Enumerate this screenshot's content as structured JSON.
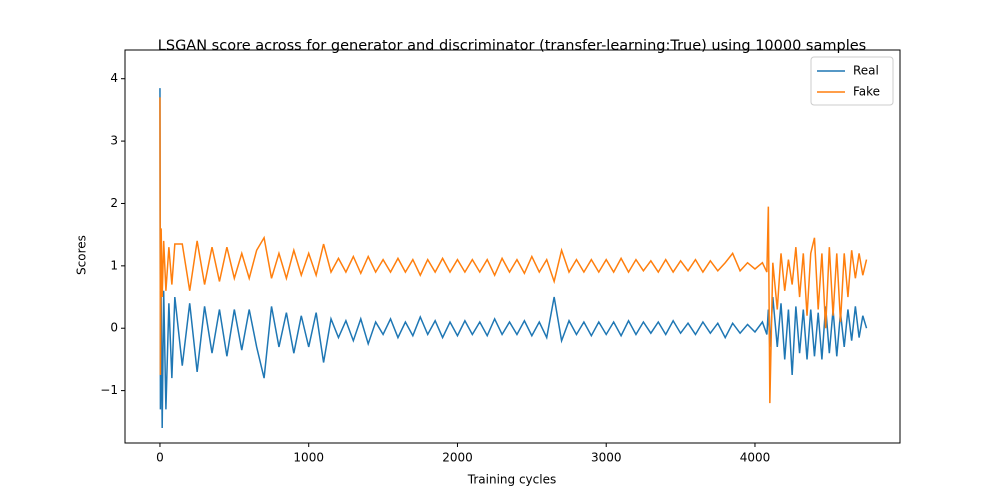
{
  "chart_data": {
    "type": "line",
    "title": "LSGAN score across for generator and discriminator (transfer-learning:True) using 10000 samples",
    "xlabel": "Training cycles",
    "ylabel": "Scores",
    "x": [
      0,
      3,
      8,
      15,
      25,
      40,
      60,
      80,
      100,
      150,
      200,
      250,
      300,
      350,
      400,
      450,
      500,
      550,
      600,
      650,
      700,
      750,
      800,
      850,
      900,
      950,
      1000,
      1050,
      1100,
      1150,
      1200,
      1250,
      1300,
      1350,
      1400,
      1450,
      1500,
      1550,
      1600,
      1650,
      1700,
      1750,
      1800,
      1850,
      1900,
      1950,
      2000,
      2050,
      2100,
      2150,
      2200,
      2250,
      2300,
      2350,
      2400,
      2450,
      2500,
      2550,
      2600,
      2650,
      2700,
      2750,
      2800,
      2850,
      2900,
      2950,
      3000,
      3050,
      3100,
      3150,
      3200,
      3250,
      3300,
      3350,
      3400,
      3450,
      3500,
      3550,
      3600,
      3650,
      3700,
      3750,
      3800,
      3850,
      3900,
      3950,
      4000,
      4050,
      4080,
      4090,
      4100,
      4120,
      4150,
      4175,
      4200,
      4225,
      4250,
      4275,
      4300,
      4325,
      4350,
      4375,
      4400,
      4425,
      4450,
      4475,
      4500,
      4525,
      4550,
      4575,
      4600,
      4625,
      4650,
      4675,
      4700,
      4725,
      4750
    ],
    "series": [
      {
        "name": "Real",
        "color": "#1f77b4",
        "values": [
          3.85,
          -1.3,
          0.5,
          -1.6,
          0.6,
          -1.3,
          0.4,
          -0.8,
          0.5,
          -0.6,
          0.4,
          -0.7,
          0.35,
          -0.4,
          0.3,
          -0.45,
          0.3,
          -0.35,
          0.3,
          -0.3,
          -0.8,
          0.35,
          -0.3,
          0.25,
          -0.4,
          0.2,
          -0.3,
          0.25,
          -0.55,
          0.15,
          -0.15,
          0.12,
          -0.2,
          0.15,
          -0.25,
          0.1,
          -0.1,
          0.15,
          -0.15,
          0.1,
          -0.12,
          0.18,
          -0.1,
          0.12,
          -0.15,
          0.1,
          -0.12,
          0.12,
          -0.1,
          0.1,
          -0.12,
          0.15,
          -0.1,
          0.1,
          -0.1,
          0.12,
          -0.12,
          0.1,
          -0.15,
          0.5,
          -0.2,
          0.12,
          -0.1,
          0.1,
          -0.12,
          0.1,
          -0.1,
          0.1,
          -0.12,
          0.12,
          -0.1,
          0.1,
          -0.08,
          0.1,
          -0.1,
          0.12,
          -0.08,
          0.08,
          -0.1,
          0.1,
          -0.08,
          0.08,
          -0.15,
          0.08,
          -0.08,
          0.06,
          -0.06,
          0.1,
          -0.1,
          0.3,
          -0.3,
          0.5,
          -0.3,
          0.4,
          -0.5,
          0.3,
          -0.75,
          0.35,
          -0.4,
          0.3,
          -0.5,
          0.3,
          -0.45,
          0.25,
          -0.5,
          0.35,
          -0.4,
          0.3,
          -0.45,
          0.25,
          -0.3,
          0.3,
          -0.2,
          0.35,
          -0.15,
          0.2,
          0.0
        ]
      },
      {
        "name": "Fake",
        "color": "#ff7f0e",
        "values": [
          3.7,
          -0.75,
          1.6,
          0.5,
          1.4,
          0.6,
          1.3,
          0.7,
          1.35,
          1.35,
          0.6,
          1.4,
          0.7,
          1.3,
          0.75,
          1.3,
          0.8,
          1.2,
          0.8,
          1.25,
          1.45,
          0.8,
          1.2,
          0.8,
          1.25,
          0.85,
          1.2,
          0.85,
          1.35,
          0.9,
          1.12,
          0.9,
          1.15,
          0.88,
          1.15,
          0.9,
          1.1,
          0.9,
          1.12,
          0.9,
          1.1,
          0.85,
          1.1,
          0.9,
          1.12,
          0.9,
          1.1,
          0.9,
          1.1,
          0.9,
          1.1,
          0.85,
          1.12,
          0.9,
          1.1,
          0.88,
          1.15,
          0.9,
          1.1,
          0.75,
          1.25,
          0.9,
          1.1,
          0.9,
          1.1,
          0.9,
          1.1,
          0.9,
          1.12,
          0.9,
          1.1,
          0.92,
          1.08,
          0.9,
          1.1,
          0.9,
          1.08,
          0.92,
          1.1,
          0.9,
          1.08,
          0.92,
          1.05,
          1.2,
          0.92,
          1.05,
          0.95,
          1.05,
          0.9,
          1.95,
          -1.2,
          1.05,
          0.3,
          1.2,
          0.6,
          1.1,
          0.7,
          1.3,
          0.5,
          1.2,
          0.2,
          1.2,
          1.45,
          0.3,
          1.2,
          0.0,
          1.3,
          0.2,
          1.2,
          0.1,
          1.2,
          0.5,
          1.25,
          0.8,
          1.2,
          0.85,
          1.1
        ]
      }
    ],
    "xlim": [
      -235,
      4975
    ],
    "ylim": [
      -1.84,
      4.3
    ],
    "xticks": [
      0,
      1000,
      2000,
      3000,
      4000
    ],
    "yticks": [
      {
        "value": -1,
        "label": "−1"
      },
      0,
      1,
      2,
      3,
      4
    ],
    "legend": "upper right"
  }
}
